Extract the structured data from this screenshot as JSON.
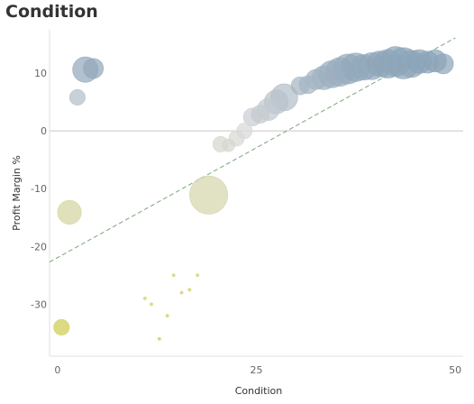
{
  "chart_data": {
    "type": "scatter",
    "title": "Condition",
    "xlabel": "Condition",
    "ylabel": "Profit Margin %",
    "xlim": [
      -1,
      51
    ],
    "ylim": [
      -39,
      17.5
    ],
    "x_ticks": [
      0,
      25,
      50
    ],
    "y_ticks": [
      10,
      0,
      -10,
      -20,
      -30
    ],
    "trend_line": {
      "x": [
        -1,
        50
      ],
      "y": [
        -22.7,
        16.1
      ],
      "color": "#7aa67a",
      "style": "dashed"
    },
    "points": [
      {
        "x": 3.5,
        "y": 10.6,
        "size": 8
      },
      {
        "x": 4.5,
        "y": 10.8,
        "size": 5
      },
      {
        "x": 2.5,
        "y": 5.8,
        "size": 3
      },
      {
        "x": 1.5,
        "y": -14.1,
        "size": 7
      },
      {
        "x": 0.5,
        "y": -34.0,
        "size": 3
      },
      {
        "x": 19.0,
        "y": -11.1,
        "size": 18
      },
      {
        "x": 20.5,
        "y": -2.3,
        "size": 3
      },
      {
        "x": 21.5,
        "y": -2.5,
        "size": 2
      },
      {
        "x": 22.5,
        "y": -1.3,
        "size": 3
      },
      {
        "x": 23.5,
        "y": 0.0,
        "size": 3
      },
      {
        "x": 24.5,
        "y": 2.4,
        "size": 4
      },
      {
        "x": 25.5,
        "y": 2.9,
        "size": 4
      },
      {
        "x": 26.5,
        "y": 3.7,
        "size": 6
      },
      {
        "x": 27.5,
        "y": 5.0,
        "size": 7
      },
      {
        "x": 28.5,
        "y": 5.8,
        "size": 9
      },
      {
        "x": 30.5,
        "y": 7.8,
        "size": 4
      },
      {
        "x": 31.5,
        "y": 8.0,
        "size": 4
      },
      {
        "x": 32.5,
        "y": 8.9,
        "size": 5
      },
      {
        "x": 33.5,
        "y": 9.2,
        "size": 7
      },
      {
        "x": 34.5,
        "y": 9.8,
        "size": 9
      },
      {
        "x": 35.5,
        "y": 10.2,
        "size": 10
      },
      {
        "x": 36.5,
        "y": 10.7,
        "size": 11
      },
      {
        "x": 37.5,
        "y": 11.0,
        "size": 10
      },
      {
        "x": 38.5,
        "y": 11.0,
        "size": 8
      },
      {
        "x": 39.5,
        "y": 11.2,
        "size": 9
      },
      {
        "x": 40.5,
        "y": 11.6,
        "size": 8
      },
      {
        "x": 41.5,
        "y": 11.6,
        "size": 10
      },
      {
        "x": 42.5,
        "y": 12.0,
        "size": 11
      },
      {
        "x": 43.5,
        "y": 11.7,
        "size": 12
      },
      {
        "x": 44.5,
        "y": 11.6,
        "size": 9
      },
      {
        "x": 45.5,
        "y": 12.0,
        "size": 7
      },
      {
        "x": 46.5,
        "y": 11.9,
        "size": 6
      },
      {
        "x": 47.5,
        "y": 12.1,
        "size": 6
      },
      {
        "x": 48.5,
        "y": 11.6,
        "size": 5
      },
      {
        "x": 11.0,
        "y": -29.0,
        "size": 0.1
      },
      {
        "x": 11.8,
        "y": -30.0,
        "size": 0.1
      },
      {
        "x": 12.8,
        "y": -36.0,
        "size": 0.1
      },
      {
        "x": 13.8,
        "y": -32.0,
        "size": 0.1
      },
      {
        "x": 14.6,
        "y": -25.0,
        "size": 0.1
      },
      {
        "x": 15.6,
        "y": -28.0,
        "size": 0.1
      },
      {
        "x": 16.6,
        "y": -27.5,
        "size": 0.1
      },
      {
        "x": 17.6,
        "y": -25.0,
        "size": 0.1
      }
    ],
    "color_scale": {
      "low": "#cfcd50",
      "mid": "#d8d8d8",
      "high": "#8ba3b8",
      "domain": [
        -35,
        0,
        12
      ]
    },
    "grid": false,
    "legend": "none"
  }
}
